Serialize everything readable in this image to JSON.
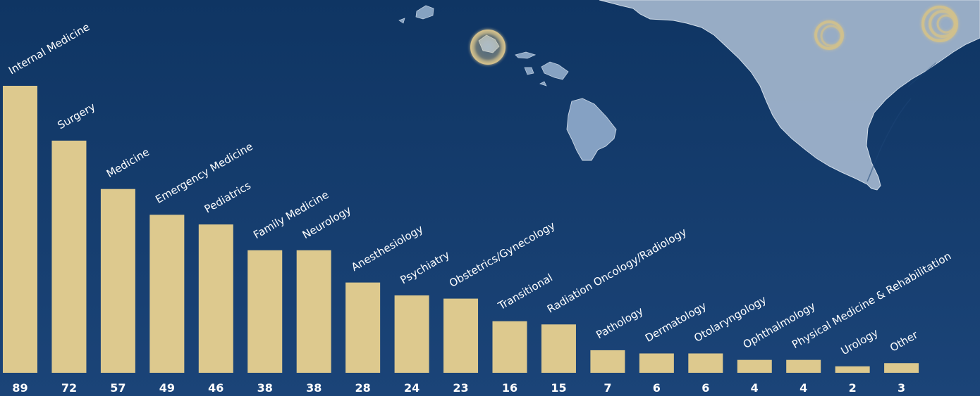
{
  "theme": {
    "background_top": "#0f3563",
    "background_bottom": "#1b4478",
    "bar_color": "#ddc98e",
    "text_color": "#ffffff",
    "map_color": "#9fb3cb",
    "marker_color": "#d9c58d"
  },
  "chart_data": {
    "type": "bar",
    "title": "",
    "xlabel": "",
    "ylabel": "",
    "ylim": [
      0,
      100
    ],
    "grid": false,
    "legend": "none",
    "categories": [
      "Internal Medicine",
      "Surgery",
      "Medicine",
      "Emergency Medicine",
      "Pediatrics",
      "Family Medicine",
      "Neurology",
      "Anesthesiology",
      "Psychiatry",
      "Obstetrics/Gynecology",
      "Transitional",
      "Radiation Oncology/Radiology",
      "Pathology",
      "Dermatology",
      "Otolaryngology",
      "Ophthalmology",
      "Physical Medicine & Rehabilitation",
      "Urology",
      "Other"
    ],
    "values": [
      89,
      72,
      57,
      49,
      46,
      38,
      38,
      28,
      24,
      23,
      16,
      15,
      7,
      6,
      6,
      4,
      4,
      2,
      3
    ]
  }
}
